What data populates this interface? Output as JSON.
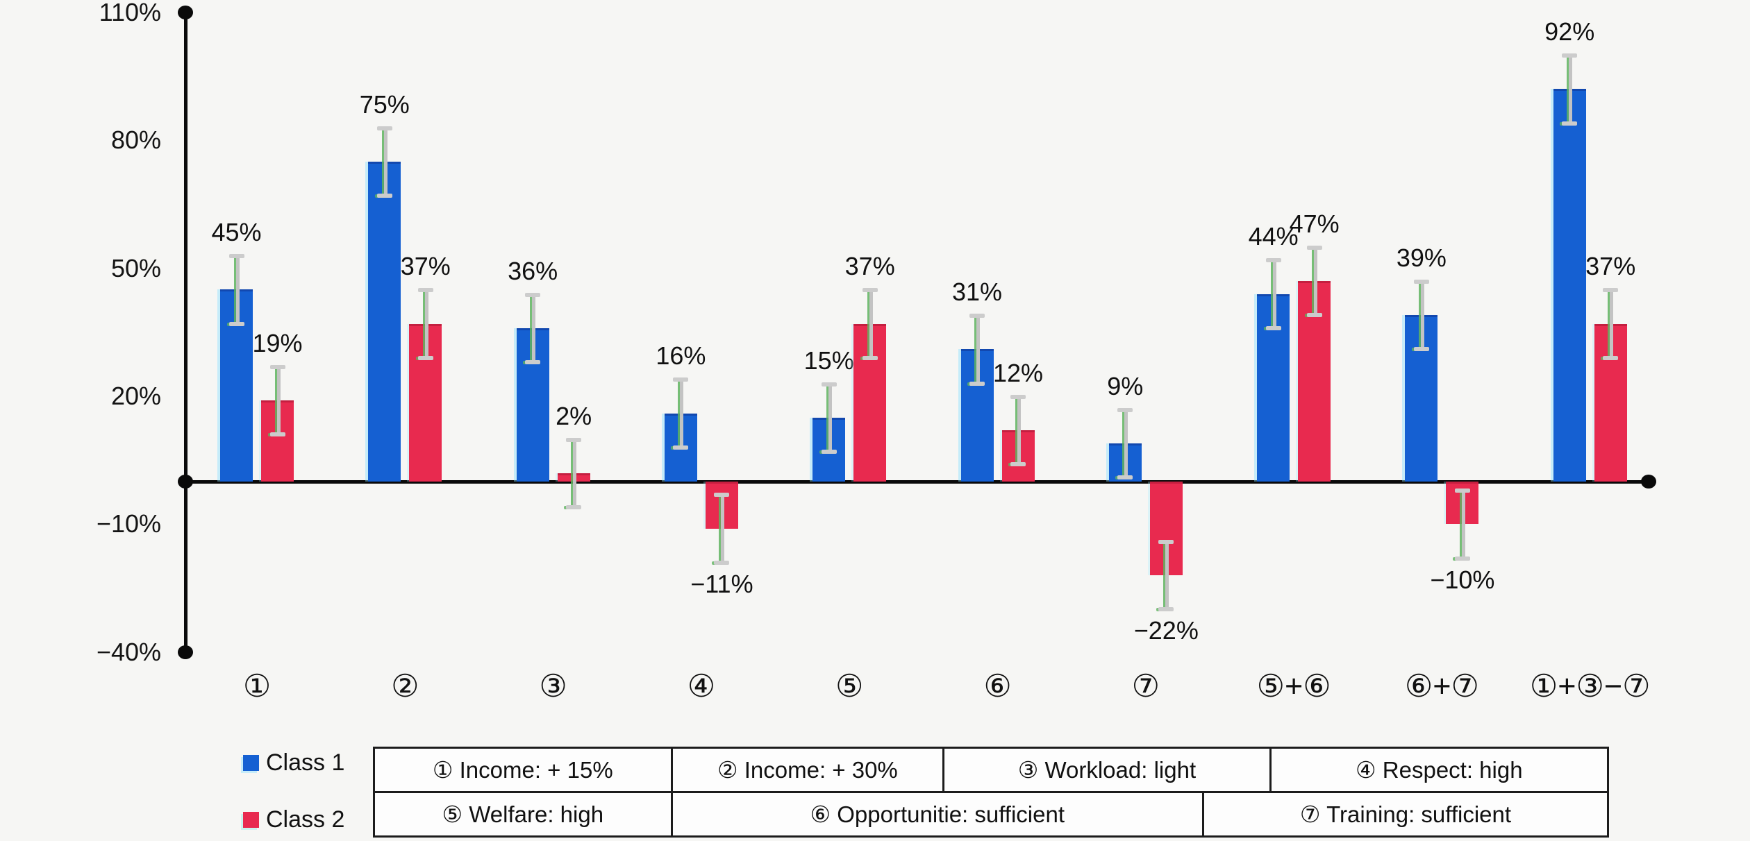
{
  "page": {
    "background": "#f6f6f4"
  },
  "colors": {
    "class1": "#1560d2",
    "class2": "#e82a4f",
    "error_gray": "#c3c3c3",
    "error_cap": "#cccccc",
    "error_green": "#5fb45f",
    "axis": "#0a0a0a",
    "text": "#121212"
  },
  "y_axis": {
    "tick_labels": [
      "110%",
      "80%",
      "50%",
      "20%",
      "−10%",
      "−40%"
    ],
    "tick_values": [
      110,
      80,
      50,
      20,
      -10,
      -40
    ],
    "min": -40,
    "max": 110
  },
  "chart_data": {
    "type": "bar",
    "title": "",
    "xlabel": "",
    "ylabel": "",
    "ylim": [
      -40,
      110
    ],
    "grid": false,
    "legend_position": "bottom-left",
    "categories": [
      "①",
      "②",
      "③",
      "④",
      "⑤",
      "⑥",
      "⑦",
      "⑤+⑥",
      "⑥+⑦",
      "①+③−⑦"
    ],
    "series": [
      {
        "name": "Class 1",
        "values": [
          45,
          75,
          36,
          16,
          15,
          31,
          9,
          44,
          39,
          92
        ],
        "labels": [
          "45%",
          "75%",
          "36%",
          "16%",
          "15%",
          "31%",
          "9%",
          "44%",
          "39%",
          "92%"
        ]
      },
      {
        "name": "Class 2",
        "values": [
          19,
          37,
          2,
          -11,
          37,
          12,
          -22,
          47,
          -10,
          37
        ],
        "labels": [
          "19%",
          "37%",
          "2%",
          "−11%",
          "37%",
          "12%",
          "−22%",
          "47%",
          "−10%",
          "37%"
        ]
      }
    ],
    "error_bars": {
      "plus_minus": 8
    }
  },
  "legend": {
    "items": [
      {
        "label": "Class 1",
        "color_key": "class1"
      },
      {
        "label": "Class 2",
        "color_key": "class2"
      }
    ]
  },
  "table": {
    "rows": [
      [
        "① Income: + 15%",
        "② Income: + 30%",
        "③ Workload: light",
        "④ Respect: high"
      ],
      [
        "⑤ Welfare: high",
        "⑥ Opportunitie: sufficient",
        "⑦ Training: sufficient"
      ]
    ]
  }
}
